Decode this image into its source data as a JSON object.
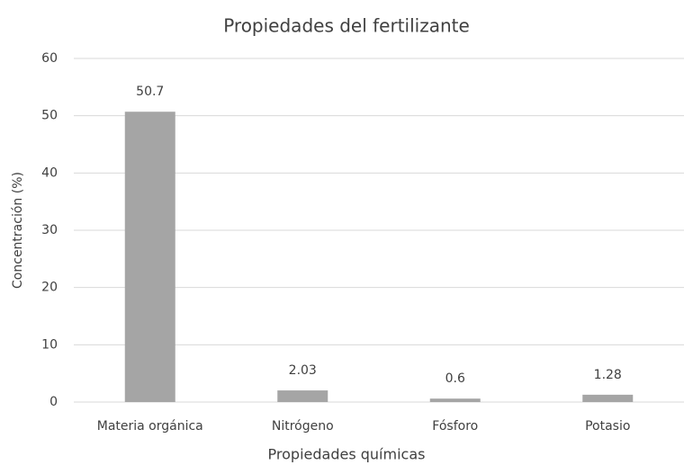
{
  "chart_data": {
    "type": "bar",
    "title": "Propiedades del fertilizante",
    "x_label": "Propiedades químicas",
    "y_label": "Concentración (%)",
    "categories": [
      "Materia orgánica",
      "Nitrógeno",
      "Fósforo",
      "Potasio"
    ],
    "values": [
      50.7,
      2.03,
      0.6,
      1.28
    ],
    "color": "#a5a5a5",
    "ylim": [
      0,
      60
    ],
    "yticks": [
      0,
      10,
      20,
      30,
      40,
      50,
      60
    ],
    "grid": true,
    "data_labels": true
  }
}
